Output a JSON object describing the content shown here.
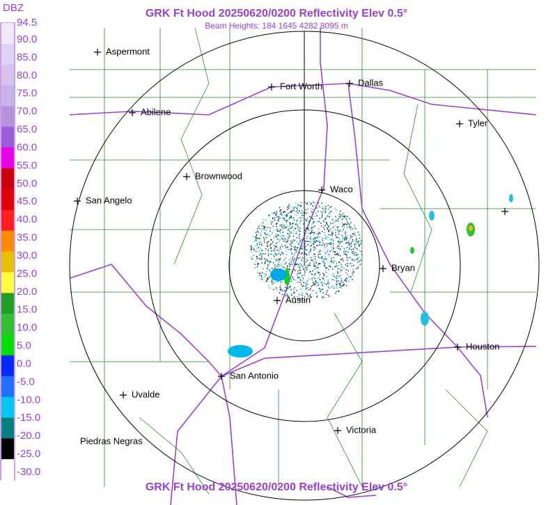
{
  "header": {
    "title": "GRK Ft Hood 20250620/0200 Reflectivity Elev 0.5°",
    "subtitle": "Beam Heights: 184 1645 4282 8095 m",
    "footer_title": "GRK Ft Hood 20250620/0200 Reflectivity Elev 0.5°"
  },
  "legend": {
    "unit": "DBZ",
    "labels": [
      "94.5",
      "90.0",
      "85.0",
      "80.0",
      "75.0",
      "70.0",
      "65.0",
      "60.0",
      "55.0",
      "50.0",
      "45.0",
      "40.0",
      "35.0",
      "30.0",
      "25.0",
      "20.0",
      "15.0",
      "10.0",
      "5.0",
      "0.0",
      "-5.0",
      "-10.0",
      "-15.0",
      "-20.0",
      "-25.0",
      "-30.0"
    ]
  },
  "cities": [
    {
      "label": "Aspermont"
    },
    {
      "label": "Abilene"
    },
    {
      "label": "Fort Worth"
    },
    {
      "label": "Dallas"
    },
    {
      "label": "Tyler"
    },
    {
      "label": "Brownwood"
    },
    {
      "label": "Waco"
    },
    {
      "label": "San Angelo"
    },
    {
      "label": "Bryan"
    },
    {
      "label": "Austin"
    },
    {
      "label": "Houston"
    },
    {
      "label": "San Antonio"
    },
    {
      "label": "Uvalde"
    },
    {
      "label": "Victoria"
    },
    {
      "label": "Piedras Negras"
    }
  ]
}
